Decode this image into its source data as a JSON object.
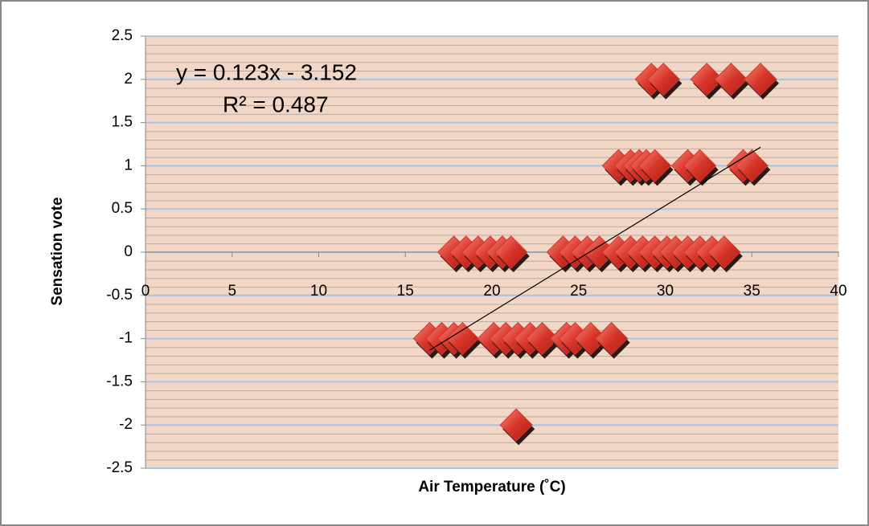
{
  "chart_data": {
    "type": "scatter",
    "x_label": "Air Temperature  (˚C)",
    "y_label": "Sensation vote",
    "x": [
      29.2,
      29.9,
      32.4,
      33.8,
      35.5,
      27.3,
      28.0,
      28.5,
      28.9,
      29.4,
      31.3,
      32.0,
      34.5,
      35.0,
      17.8,
      18.5,
      19.2,
      19.9,
      20.6,
      21.1,
      24.1,
      24.8,
      25.5,
      26.2,
      27.3,
      28.0,
      28.7,
      29.4,
      30.1,
      30.6,
      31.3,
      32.0,
      32.7,
      33.4,
      16.4,
      17.1,
      17.8,
      18.3,
      20.1,
      20.8,
      21.5,
      22.2,
      22.9,
      24.3,
      24.8,
      25.7,
      26.9,
      21.4
    ],
    "values": [
      2,
      2,
      2,
      2,
      2,
      1,
      1,
      1,
      1,
      1,
      1,
      1,
      1,
      1,
      0,
      0,
      0,
      0,
      0,
      0,
      0,
      0,
      0,
      0,
      0,
      0,
      0,
      0,
      0,
      0,
      0,
      0,
      0,
      0,
      -1,
      -1,
      -1,
      -1,
      -1,
      -1,
      -1,
      -1,
      -1,
      -1,
      -1,
      -1,
      -1,
      -2
    ],
    "color": "#d8352a",
    "xlim": [
      0,
      40
    ],
    "xticks": [
      0,
      5,
      10,
      15,
      20,
      25,
      30,
      35,
      40
    ],
    "ylim": [
      -2.5,
      2.5
    ],
    "yticks": [
      -2.5,
      -2,
      -1.5,
      -1,
      -0.5,
      0,
      0.5,
      1,
      1.5,
      2,
      2.5
    ],
    "grid": true,
    "trendline": {
      "equation": "y = 0.123x - 3.152",
      "r_squared": "R² = 0.487",
      "slope": 0.123,
      "intercept": -3.152,
      "x": [
        16.4,
        35.5
      ]
    }
  }
}
